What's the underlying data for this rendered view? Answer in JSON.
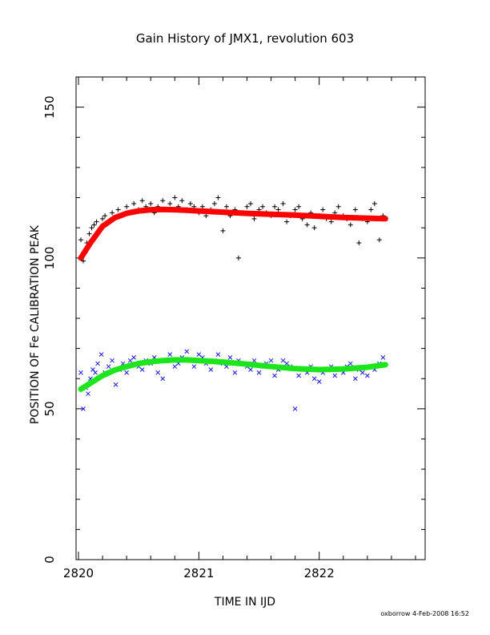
{
  "chart_data": {
    "type": "scatter",
    "title": "Gain History of JMX1, revolution 603",
    "xlabel": "TIME IN IJD",
    "ylabel": "POSITION OF Fe CALIBRATION PEAK",
    "xlim": [
      2819.98,
      2822.88
    ],
    "ylim": [
      0,
      160
    ],
    "xticks": [
      2820,
      2821,
      2822
    ],
    "xtick_labels": [
      "2820",
      "2821",
      "2822"
    ],
    "yticks": [
      0,
      50,
      100,
      150
    ],
    "ytick_labels": [
      "0",
      "50",
      "100",
      "150"
    ],
    "grid": false,
    "footer": "oxborrow  4-Feb-2008 16:52",
    "series": [
      {
        "marker": "plus",
        "color": "#000000",
        "x": [
          2820.02,
          2820.04,
          2820.06,
          2820.07,
          2820.09,
          2820.11,
          2820.13,
          2820.15,
          2820.18,
          2820.2,
          2820.22,
          2820.25,
          2820.28,
          2820.3,
          2820.33,
          2820.36,
          2820.4,
          2820.43,
          2820.46,
          2820.5,
          2820.53,
          2820.56,
          2820.6,
          2820.63,
          2820.66,
          2820.7,
          2820.73,
          2820.76,
          2820.8,
          2820.83,
          2820.86,
          2820.9,
          2820.93,
          2820.96,
          2821.0,
          2821.03,
          2821.06,
          2821.1,
          2821.13,
          2821.16,
          2821.2,
          2821.23,
          2821.26,
          2821.3,
          2821.33,
          2821.36,
          2821.4,
          2821.43,
          2821.46,
          2821.5,
          2821.53,
          2821.56,
          2821.6,
          2821.63,
          2821.66,
          2821.7,
          2821.73,
          2821.76,
          2821.8,
          2821.83,
          2821.86,
          2821.9,
          2821.93,
          2821.96,
          2822.0,
          2822.03,
          2822.06,
          2822.1,
          2822.13,
          2822.16,
          2822.2,
          2822.23,
          2822.26,
          2822.3,
          2822.33,
          2822.36,
          2822.4,
          2822.43,
          2822.46,
          2822.5,
          2822.53
        ],
        "y": [
          106,
          99,
          102,
          105,
          108,
          110,
          111,
          112,
          109,
          113,
          114,
          112,
          115,
          113,
          116,
          114,
          117,
          115,
          118,
          116,
          119,
          117,
          118,
          115,
          117,
          119,
          116,
          118,
          120,
          117,
          119,
          116,
          118,
          117,
          115,
          117,
          114,
          116,
          118,
          120,
          109,
          117,
          114,
          116,
          100,
          115,
          117,
          118,
          113,
          116,
          117,
          115,
          114,
          117,
          116,
          118,
          112,
          114,
          116,
          117,
          113,
          111,
          115,
          110,
          114,
          116,
          113,
          112,
          115,
          117,
          114,
          113,
          111,
          116,
          105,
          113,
          112,
          116,
          118,
          106,
          114
        ]
      },
      {
        "marker": "cross",
        "color": "#1a1adc",
        "x": [
          2820.02,
          2820.04,
          2820.06,
          2820.08,
          2820.1,
          2820.12,
          2820.14,
          2820.16,
          2820.19,
          2820.22,
          2820.25,
          2820.28,
          2820.31,
          2820.34,
          2820.37,
          2820.4,
          2820.43,
          2820.46,
          2820.5,
          2820.53,
          2820.56,
          2820.6,
          2820.63,
          2820.66,
          2820.7,
          2820.73,
          2820.76,
          2820.8,
          2820.83,
          2820.86,
          2820.9,
          2820.93,
          2820.96,
          2821.0,
          2821.03,
          2821.06,
          2821.1,
          2821.13,
          2821.16,
          2821.2,
          2821.23,
          2821.26,
          2821.3,
          2821.33,
          2821.36,
          2821.4,
          2821.43,
          2821.46,
          2821.5,
          2821.53,
          2821.56,
          2821.6,
          2821.63,
          2821.66,
          2821.7,
          2821.73,
          2821.76,
          2821.8,
          2821.83,
          2821.86,
          2821.9,
          2821.93,
          2821.96,
          2822.0,
          2822.03,
          2822.06,
          2822.1,
          2822.13,
          2822.16,
          2822.2,
          2822.23,
          2822.26,
          2822.3,
          2822.33,
          2822.36,
          2822.4,
          2822.43,
          2822.46,
          2822.5,
          2822.53
        ],
        "y": [
          62,
          50,
          57,
          55,
          60,
          63,
          62,
          65,
          68,
          62,
          64,
          66,
          58,
          63,
          65,
          62,
          66,
          67,
          64,
          63,
          66,
          65,
          67,
          62,
          60,
          66,
          68,
          64,
          65,
          67,
          69,
          66,
          64,
          68,
          67,
          65,
          63,
          66,
          68,
          65,
          64,
          67,
          62,
          66,
          65,
          64,
          63,
          66,
          62,
          64,
          65,
          66,
          61,
          63,
          66,
          65,
          64,
          50,
          61,
          63,
          62,
          64,
          60,
          59,
          62,
          63,
          64,
          61,
          63,
          62,
          64,
          65,
          60,
          63,
          62,
          61,
          64,
          63,
          65,
          67
        ]
      },
      {
        "marker": "line",
        "color": "#ff0000",
        "x": [
          2820.02,
          2820.1,
          2820.2,
          2820.3,
          2820.4,
          2820.5,
          2820.6,
          2820.7,
          2820.8,
          2820.9,
          2821.0,
          2821.2,
          2821.4,
          2821.6,
          2821.8,
          2822.0,
          2822.2,
          2822.4,
          2822.55
        ],
        "y": [
          100,
          105,
          110.5,
          113.3,
          114.8,
          115.6,
          116.0,
          116.1,
          116.0,
          115.8,
          115.6,
          115.2,
          114.8,
          114.5,
          114.2,
          113.8,
          113.4,
          113.2,
          113.0
        ]
      },
      {
        "marker": "line",
        "color": "#1ae61a",
        "x": [
          2820.02,
          2820.1,
          2820.2,
          2820.3,
          2820.4,
          2820.5,
          2820.6,
          2820.7,
          2820.8,
          2820.9,
          2821.0,
          2821.2,
          2821.4,
          2821.6,
          2821.8,
          2822.0,
          2822.2,
          2822.4,
          2822.55
        ],
        "y": [
          56.5,
          58.5,
          61.0,
          62.8,
          64.0,
          65.0,
          65.6,
          66.0,
          66.2,
          66.2,
          66.0,
          65.5,
          64.8,
          64.0,
          63.3,
          63.0,
          63.2,
          63.8,
          64.6
        ]
      }
    ]
  }
}
